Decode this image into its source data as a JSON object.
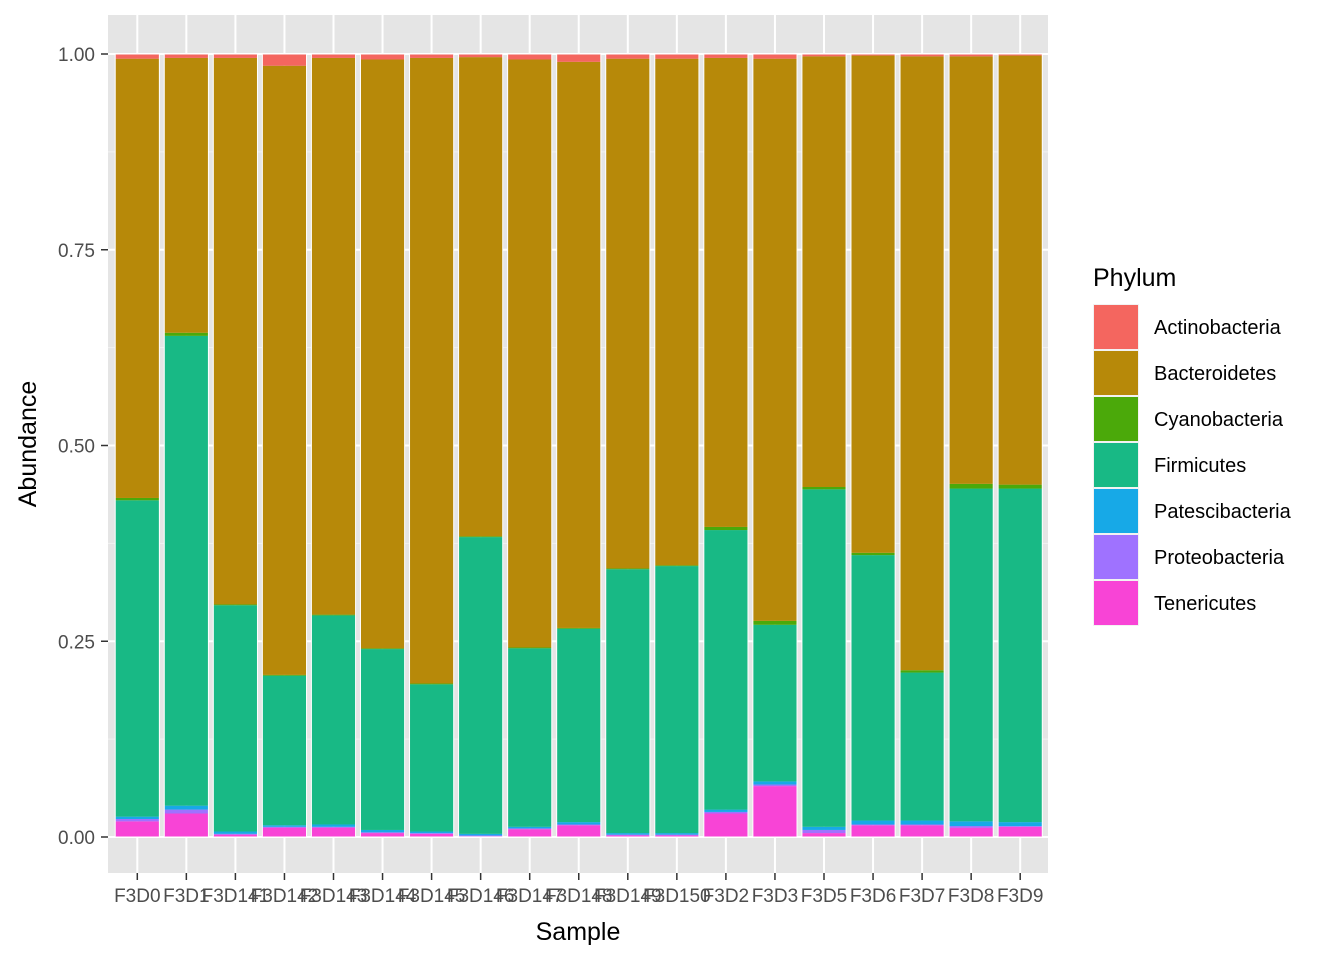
{
  "chart_data": {
    "type": "bar",
    "stacked": true,
    "title": "",
    "xlabel": "Sample",
    "ylabel": "Abundance",
    "ylim": [
      0,
      1
    ],
    "yticks": [
      "0.00",
      "0.25",
      "0.50",
      "0.75",
      "1.00"
    ],
    "ytick_values": [
      0,
      0.25,
      0.5,
      0.75,
      1
    ],
    "grid": true,
    "panel_background": "#E5E5E5",
    "legend": {
      "title": "Phylum",
      "position": "right"
    },
    "categories": [
      "F3D0",
      "F3D1",
      "F3D141",
      "F3D142",
      "F3D143",
      "F3D144",
      "F3D145",
      "F3D146",
      "F3D147",
      "F3D148",
      "F3D149",
      "F3D150",
      "F3D2",
      "F3D3",
      "F3D5",
      "F3D6",
      "F3D7",
      "F3D8",
      "F3D9"
    ],
    "series": [
      {
        "name": "Tenericutes",
        "color": "#F844D6",
        "values": [
          0.02,
          0.03,
          0.003,
          0.012,
          0.012,
          0.005,
          0.004,
          0.001,
          0.01,
          0.015,
          0.002,
          0.002,
          0.03,
          0.065,
          0.005,
          0.015,
          0.015,
          0.012,
          0.013
        ]
      },
      {
        "name": "Proteobacteria",
        "color": "#9F72FF",
        "values": [
          0.003,
          0.005,
          0.001,
          0.001,
          0.001,
          0.001,
          0.001,
          0.001,
          0.001,
          0.001,
          0.001,
          0.001,
          0.002,
          0.002,
          0.004,
          0.001,
          0.001,
          0.002,
          0.001
        ]
      },
      {
        "name": "Patescibacteria",
        "color": "#17A9E7",
        "values": [
          0.003,
          0.005,
          0.003,
          0.002,
          0.003,
          0.003,
          0.002,
          0.002,
          0.002,
          0.003,
          0.002,
          0.002,
          0.003,
          0.004,
          0.004,
          0.005,
          0.005,
          0.006,
          0.005
        ]
      },
      {
        "name": "Firmicutes",
        "color": "#18B985",
        "values": [
          0.404,
          0.6,
          0.289,
          0.191,
          0.267,
          0.231,
          0.188,
          0.379,
          0.228,
          0.247,
          0.337,
          0.341,
          0.357,
          0.2,
          0.431,
          0.339,
          0.189,
          0.425,
          0.426
        ]
      },
      {
        "name": "Cyanobacteria",
        "color": "#4BA90A",
        "values": [
          0.003,
          0.004,
          0.001,
          0.001,
          0.001,
          0.001,
          0.001,
          0.001,
          0.001,
          0.001,
          0.001,
          0.001,
          0.004,
          0.005,
          0.003,
          0.003,
          0.003,
          0.006,
          0.005
        ]
      },
      {
        "name": "Bacteroidetes",
        "color": "#B78909",
        "values": [
          0.561,
          0.351,
          0.698,
          0.778,
          0.711,
          0.752,
          0.799,
          0.612,
          0.751,
          0.723,
          0.651,
          0.647,
          0.599,
          0.718,
          0.55,
          0.635,
          0.784,
          0.546,
          0.548
        ]
      },
      {
        "name": "Actinobacteria",
        "color": "#F4665F",
        "values": [
          0.006,
          0.005,
          0.005,
          0.015,
          0.005,
          0.007,
          0.005,
          0.004,
          0.007,
          0.01,
          0.006,
          0.006,
          0.005,
          0.006,
          0.003,
          0.002,
          0.003,
          0.003,
          0.002
        ]
      }
    ]
  }
}
